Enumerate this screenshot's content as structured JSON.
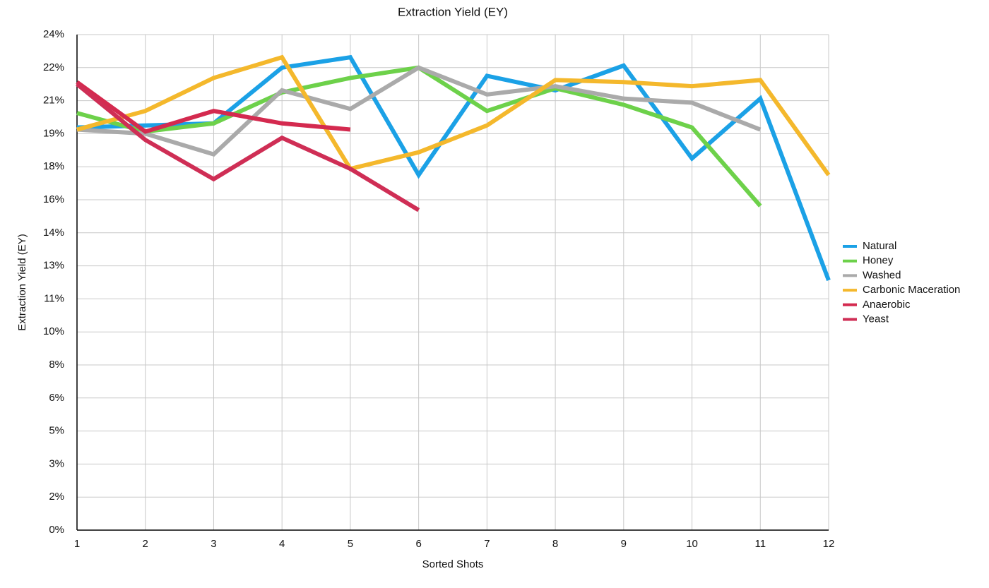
{
  "chart_data": {
    "type": "line",
    "title": "Extraction Yield (EY)",
    "x_label": "Sorted Shots",
    "y_label": "Extraction Yield (EY)",
    "x": [
      1,
      2,
      3,
      4,
      5,
      6,
      7,
      8,
      9,
      10,
      11,
      12
    ],
    "xlim": [
      1,
      12
    ],
    "xticks": [
      1,
      2,
      3,
      4,
      5,
      6,
      7,
      8,
      9,
      10,
      11,
      12
    ],
    "ylim": [
      0,
      24
    ],
    "yticks": [
      {
        "value": 0,
        "label": "0%"
      },
      {
        "value": 1.6,
        "label": "2%"
      },
      {
        "value": 3.2,
        "label": "3%"
      },
      {
        "value": 4.8,
        "label": "5%"
      },
      {
        "value": 6.4,
        "label": "6%"
      },
      {
        "value": 8,
        "label": "8%"
      },
      {
        "value": 9.6,
        "label": "10%"
      },
      {
        "value": 11.2,
        "label": "11%"
      },
      {
        "value": 12.8,
        "label": "13%"
      },
      {
        "value": 14.4,
        "label": "14%"
      },
      {
        "value": 16,
        "label": "16%"
      },
      {
        "value": 17.6,
        "label": "18%"
      },
      {
        "value": 19.2,
        "label": "19%"
      },
      {
        "value": 20.8,
        "label": "21%"
      },
      {
        "value": 22.4,
        "label": "22%"
      },
      {
        "value": 24,
        "label": "24%"
      }
    ],
    "grid": true,
    "legend": "right",
    "series": [
      {
        "name": "Natural",
        "color": "#1ba1e6",
        "values": [
          19.5,
          19.6,
          19.7,
          22.4,
          22.9,
          17.2,
          22.0,
          21.3,
          22.5,
          18.0,
          20.9,
          12.1
        ]
      },
      {
        "name": "Honey",
        "color": "#6dd14a",
        "values": [
          20.2,
          19.3,
          19.7,
          21.2,
          21.9,
          22.4,
          20.3,
          21.4,
          20.6,
          19.5,
          15.7,
          null
        ]
      },
      {
        "name": "Washed",
        "color": "#aaaaaa",
        "values": [
          19.4,
          19.2,
          18.2,
          21.3,
          20.4,
          22.4,
          21.1,
          21.5,
          20.9,
          20.7,
          19.4,
          null
        ]
      },
      {
        "name": "Carbonic Maceration",
        "color": "#f4b82c",
        "values": [
          19.4,
          20.3,
          21.9,
          22.9,
          17.5,
          18.3,
          19.6,
          21.8,
          21.7,
          21.5,
          21.8,
          17.2
        ]
      },
      {
        "name": "Anaerobic",
        "color": "#d42a4f",
        "values": [
          21.7,
          19.3,
          20.3,
          19.7,
          19.4,
          null,
          null,
          null,
          null,
          null,
          null,
          null
        ]
      },
      {
        "name": "Yeast",
        "color": "#cf2e55",
        "values": [
          21.6,
          18.9,
          17.0,
          19.0,
          17.5,
          15.5,
          null,
          null,
          null,
          null,
          null,
          null
        ]
      }
    ]
  }
}
